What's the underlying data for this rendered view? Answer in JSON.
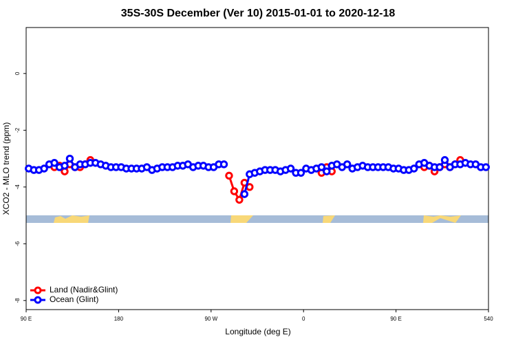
{
  "chart_data": {
    "type": "line",
    "title": "35S-30S December (Ver 10)   2015-01-01 to 2020-12-18",
    "x_label": "Longitude (deg E)",
    "y_label": "XCO2 - MLO trend (ppm)",
    "xlim": [
      90,
      540
    ],
    "xticks": [
      {
        "value": 90,
        "label": "90 E"
      },
      180,
      {
        "value": 270,
        "label": "90 W"
      },
      {
        "value": 360,
        "label": "0"
      },
      {
        "value": 450,
        "label": "90 E"
      },
      540
    ],
    "xtick_labels_extra": null,
    "ylim": [
      -8.32,
      1.62
    ],
    "yticks": [
      0,
      -2,
      -4,
      -6,
      -8
    ],
    "legend": "bottom-left",
    "x": [
      92.5,
      97.5,
      102.5,
      107.5,
      112.5,
      117.5,
      122.5,
      127.5,
      132.5,
      137.5,
      142.5,
      147.5,
      152.5,
      157.5,
      162.5,
      167.5,
      172.5,
      177.5,
      182.5,
      187.5,
      192.5,
      197.5,
      202.5,
      207.5,
      212.5,
      217.5,
      222.5,
      227.5,
      232.5,
      237.5,
      242.5,
      247.5,
      252.5,
      257.5,
      262.5,
      267.5,
      272.5,
      277.5,
      282.5,
      287.5,
      292.5,
      297.5,
      302.5,
      307.5,
      312.5,
      317.5,
      322.5,
      327.5,
      332.5,
      337.5,
      342.5,
      347.5,
      352.5,
      357.5,
      362.5,
      367.5,
      372.5,
      377.5,
      382.5,
      387.5,
      392.5,
      397.5,
      402.5,
      407.5,
      412.5,
      417.5,
      422.5,
      427.5,
      432.5,
      437.5,
      442.5,
      447.5,
      452.5,
      457.5,
      462.5,
      467.5,
      472.5,
      477.5,
      482.5,
      487.5,
      492.5,
      497.5,
      502.5,
      507.5,
      512.5,
      517.5,
      522.5,
      527.5,
      532.5,
      537.5
    ],
    "series": [
      {
        "name": "Land (Nadir&Glint)",
        "color": "#ff0000",
        "values": [
          null,
          null,
          null,
          null,
          null,
          -3.3,
          -3.25,
          -3.45,
          -3.2,
          -3.3,
          -3.3,
          -3.2,
          -3.05,
          null,
          null,
          null,
          null,
          null,
          null,
          null,
          null,
          null,
          null,
          null,
          null,
          null,
          null,
          null,
          null,
          null,
          null,
          null,
          null,
          null,
          null,
          null,
          null,
          null,
          null,
          -3.6,
          -4.15,
          -4.45,
          -3.85,
          -4.0,
          null,
          null,
          null,
          null,
          null,
          null,
          null,
          null,
          null,
          null,
          null,
          null,
          null,
          -3.5,
          -3.3,
          -3.45,
          null,
          null,
          null,
          null,
          null,
          null,
          null,
          null,
          null,
          null,
          null,
          null,
          null,
          null,
          null,
          null,
          null,
          -3.3,
          -3.25,
          -3.45,
          -3.3,
          -3.2,
          -3.3,
          -3.2,
          -3.05,
          null,
          null,
          null,
          null,
          null
        ]
      },
      {
        "name": "Ocean (Glint)",
        "color": "#0000ff",
        "values": [
          -3.35,
          -3.4,
          -3.4,
          -3.35,
          -3.2,
          -3.15,
          -3.3,
          -3.25,
          -3.0,
          -3.3,
          -3.2,
          -3.2,
          -3.15,
          -3.15,
          -3.2,
          -3.25,
          -3.3,
          -3.3,
          -3.3,
          -3.35,
          -3.35,
          -3.35,
          -3.35,
          -3.3,
          -3.4,
          -3.35,
          -3.3,
          -3.3,
          -3.3,
          -3.25,
          -3.25,
          -3.2,
          -3.3,
          -3.25,
          -3.25,
          -3.3,
          -3.3,
          -3.2,
          -3.2,
          null,
          null,
          null,
          -4.25,
          -3.55,
          -3.5,
          -3.45,
          -3.4,
          -3.4,
          -3.4,
          -3.45,
          -3.4,
          -3.35,
          -3.5,
          -3.5,
          -3.35,
          -3.4,
          -3.35,
          -3.3,
          -3.45,
          -3.25,
          -3.2,
          -3.3,
          -3.2,
          -3.35,
          -3.3,
          -3.25,
          -3.3,
          -3.3,
          -3.3,
          -3.3,
          -3.3,
          -3.35,
          -3.35,
          -3.4,
          -3.4,
          -3.35,
          -3.2,
          -3.15,
          -3.25,
          -3.3,
          -3.3,
          -3.05,
          -3.3,
          -3.2,
          -3.2,
          -3.15,
          -3.2,
          -3.2,
          -3.3,
          -3.3
        ]
      }
    ]
  }
}
